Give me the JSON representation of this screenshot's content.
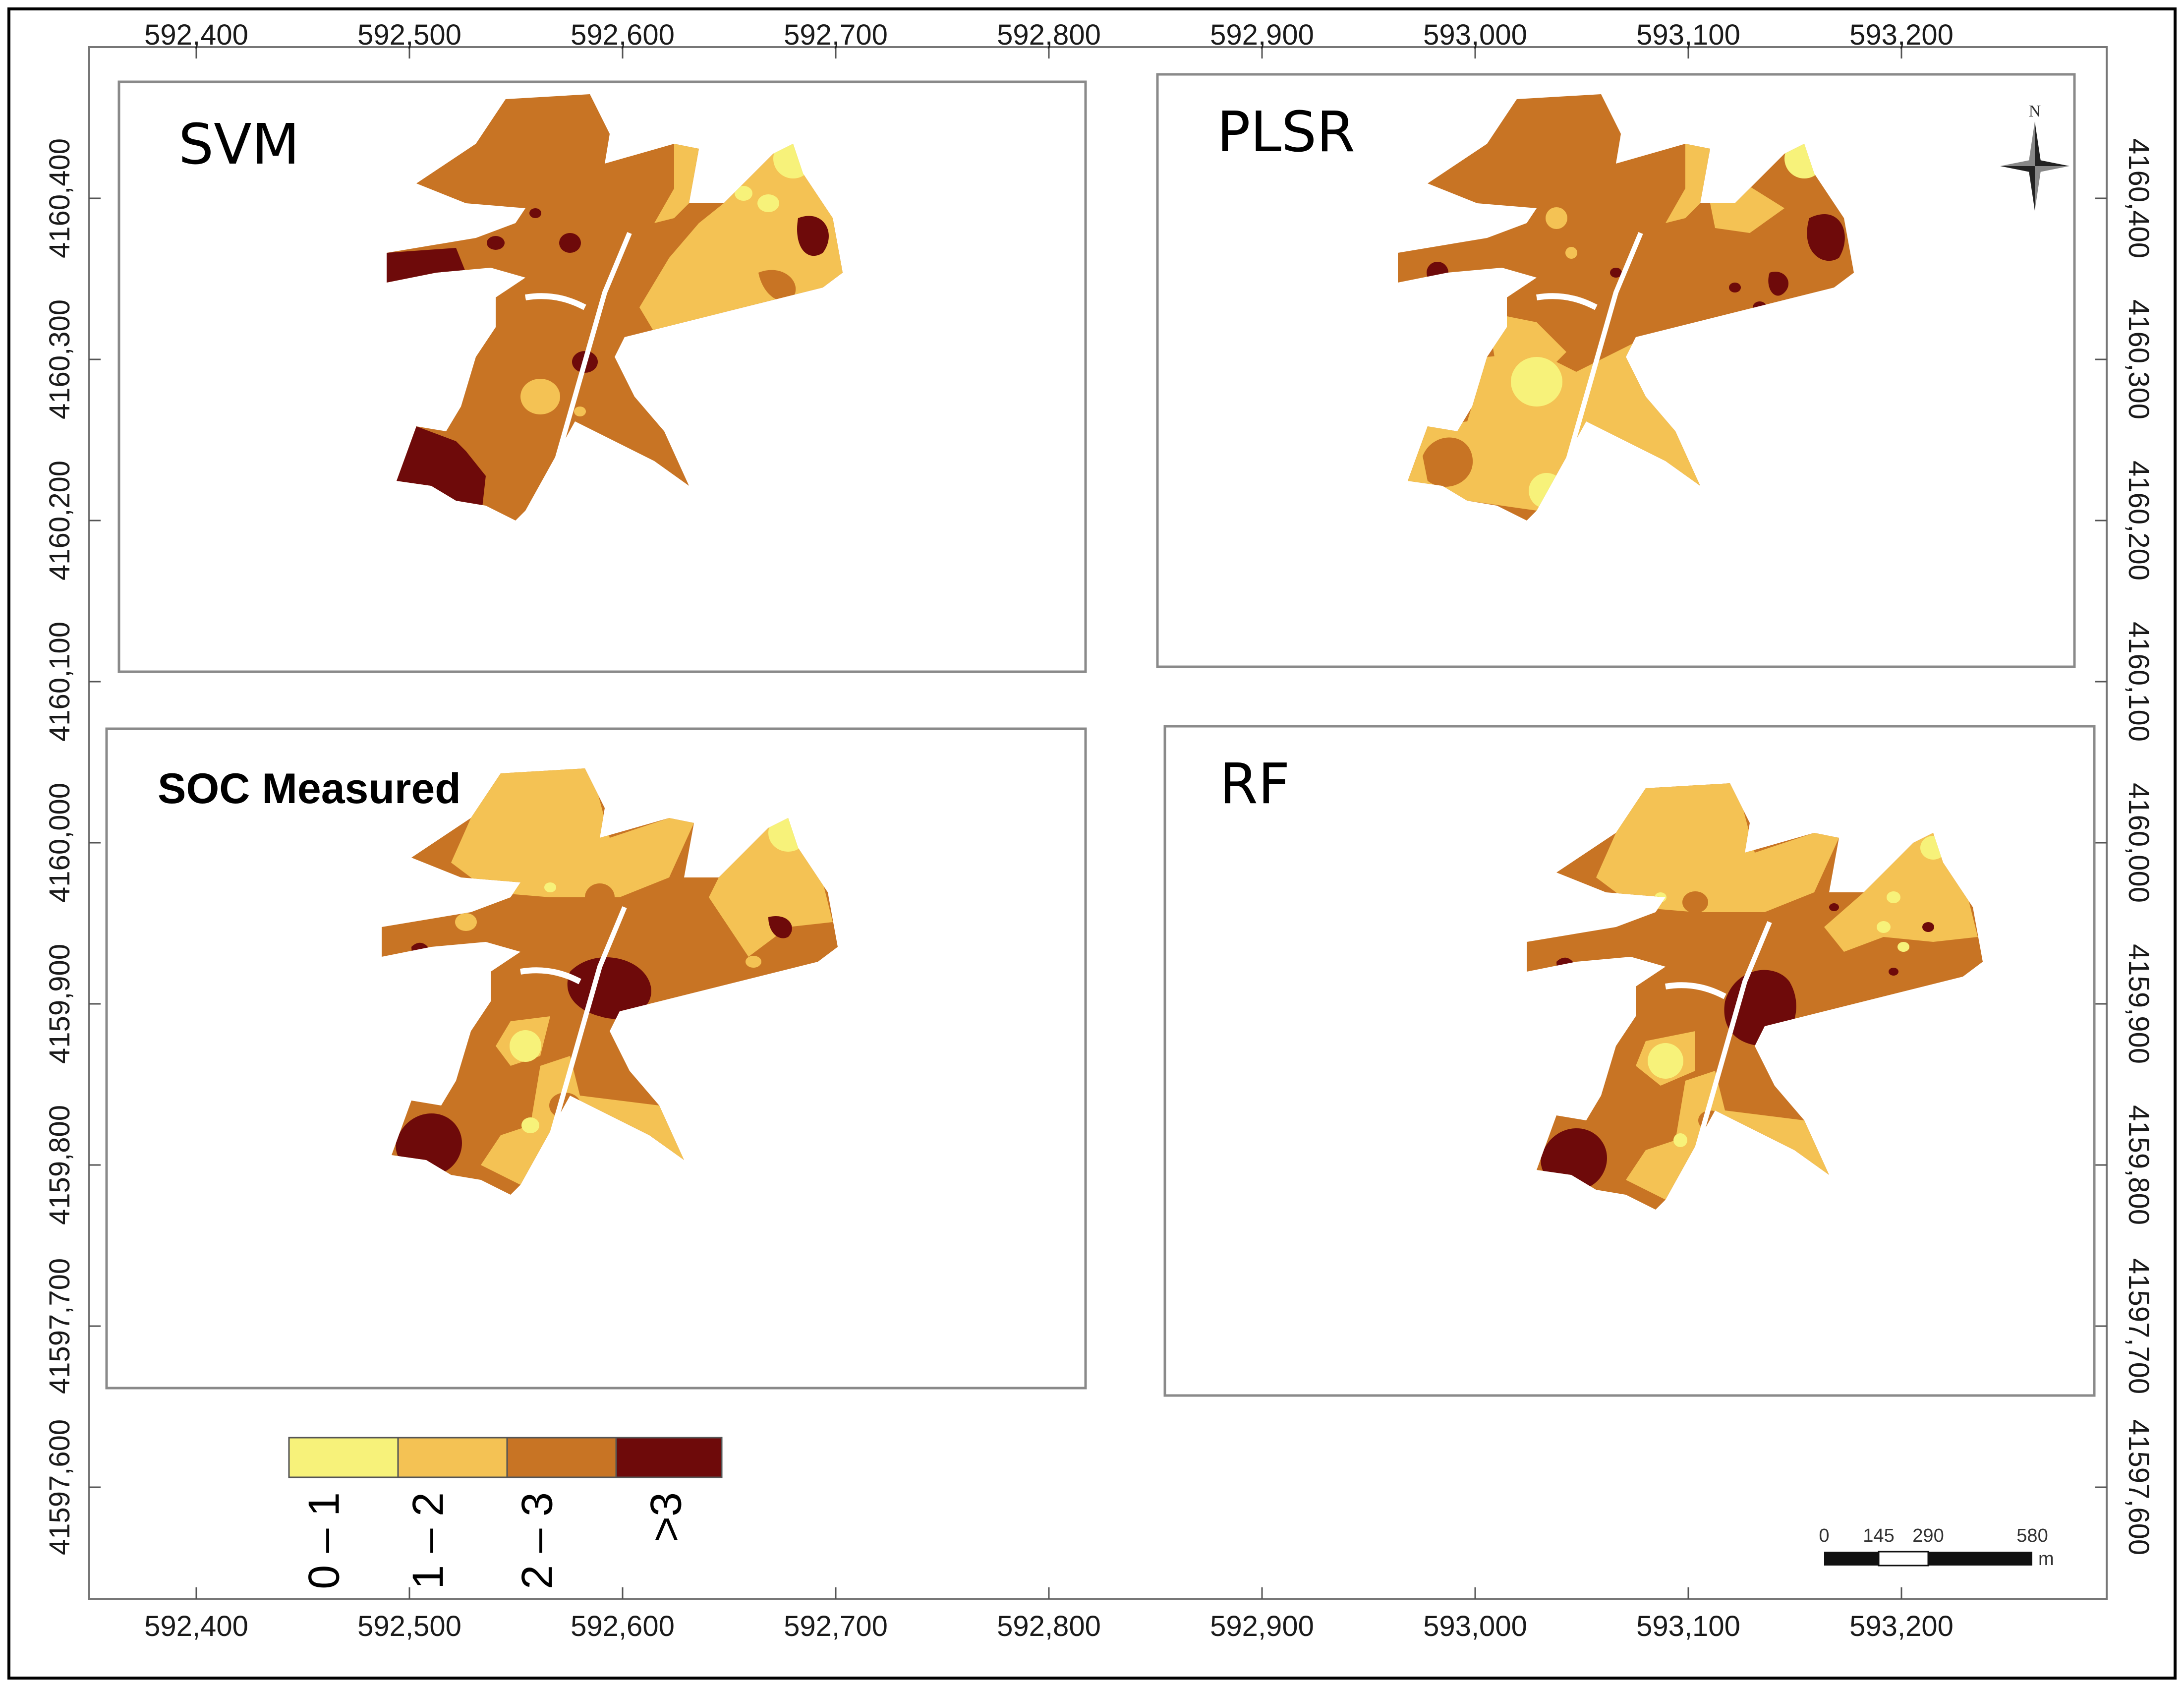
{
  "figure": {
    "x_ticks": [
      "592,400",
      "592,500",
      "592,600",
      "592,700",
      "592,800",
      "592,900",
      "593,000",
      "593,100",
      "593,200"
    ],
    "y_ticks": [
      "4160,400",
      "4160,300",
      "4160,200",
      "4160,100",
      "4160,000",
      "4159,900",
      "4159,800",
      "41597,700",
      "41597,600"
    ],
    "colors": {
      "class_0_1": "#f7f27a",
      "class_1_2": "#f4c254",
      "class_2_3": "#c87424",
      "class_gt3": "#6e0a0a"
    }
  },
  "panels": [
    {
      "id": "svm",
      "title": "SVM"
    },
    {
      "id": "plsr",
      "title": "PLSR"
    },
    {
      "id": "soc",
      "title": "SOC Measured"
    },
    {
      "id": "rf",
      "title": "RF"
    }
  ],
  "legend": {
    "classes": [
      {
        "label": "0 – 1",
        "color": "#f7f27a"
      },
      {
        "label": "1 – 2",
        "color": "#f4c254"
      },
      {
        "label": "2 – 3",
        "color": "#c87424"
      },
      {
        "label": ">3",
        "color": "#6e0a0a"
      }
    ]
  },
  "north_arrow": {
    "label": "N"
  },
  "scale_bar": {
    "labels": [
      "0",
      "145",
      "290",
      "580"
    ],
    "unit": "m"
  }
}
